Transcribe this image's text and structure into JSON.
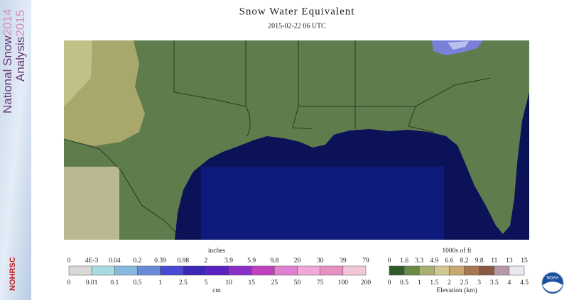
{
  "header": {
    "title": "Snow Water Equivalent",
    "subtitle": "2015-02-22 06 UTC"
  },
  "sidebar": {
    "line1": "National Snow",
    "year1": "2014",
    "line2": "Analysis",
    "year2": "2015",
    "agency": "NOHRSC"
  },
  "snow_legend": {
    "top_unit": "inches",
    "top_labels": [
      "0",
      "4E-3",
      "0.04",
      "0.2",
      "0.39",
      "0.98",
      "2",
      "3.9",
      "5.9",
      "9.8",
      "20",
      "30",
      "39",
      "79"
    ],
    "bottom_unit": "cm",
    "bottom_labels": [
      "0",
      "0.01",
      "0.1",
      "0.5",
      "1",
      "2.5",
      "5",
      "10",
      "15",
      "25",
      "50",
      "75",
      "100",
      "200"
    ],
    "colors": [
      "#d8d8d8",
      "#a8dce0",
      "#88b8dc",
      "#6a8ad8",
      "#4a4ad0",
      "#3a28b8",
      "#5a20c0",
      "#8a30c8",
      "#c040c0",
      "#e080d0",
      "#f0a8d8",
      "#e890c0",
      "#f0c8d8"
    ]
  },
  "elevation_legend": {
    "top_unit": "1000s of ft",
    "top_labels": [
      "0",
      "1.6",
      "3.3",
      "4.9",
      "6.6",
      "8.2",
      "9.8",
      "11",
      "13",
      "15"
    ],
    "bottom_labels": [
      "0",
      "0.5",
      "1",
      "1.5",
      "2",
      "2.5",
      "3",
      "3.5",
      "4",
      "4.5"
    ],
    "title": "Elevation (km)",
    "colors": [
      "#2f5a2a",
      "#6a8a48",
      "#a8b070",
      "#d0c890",
      "#c8a870",
      "#a87850",
      "#8a5a40",
      "#b898a8",
      "#e8e8f0"
    ]
  },
  "logo": {
    "label": "NOAA"
  }
}
